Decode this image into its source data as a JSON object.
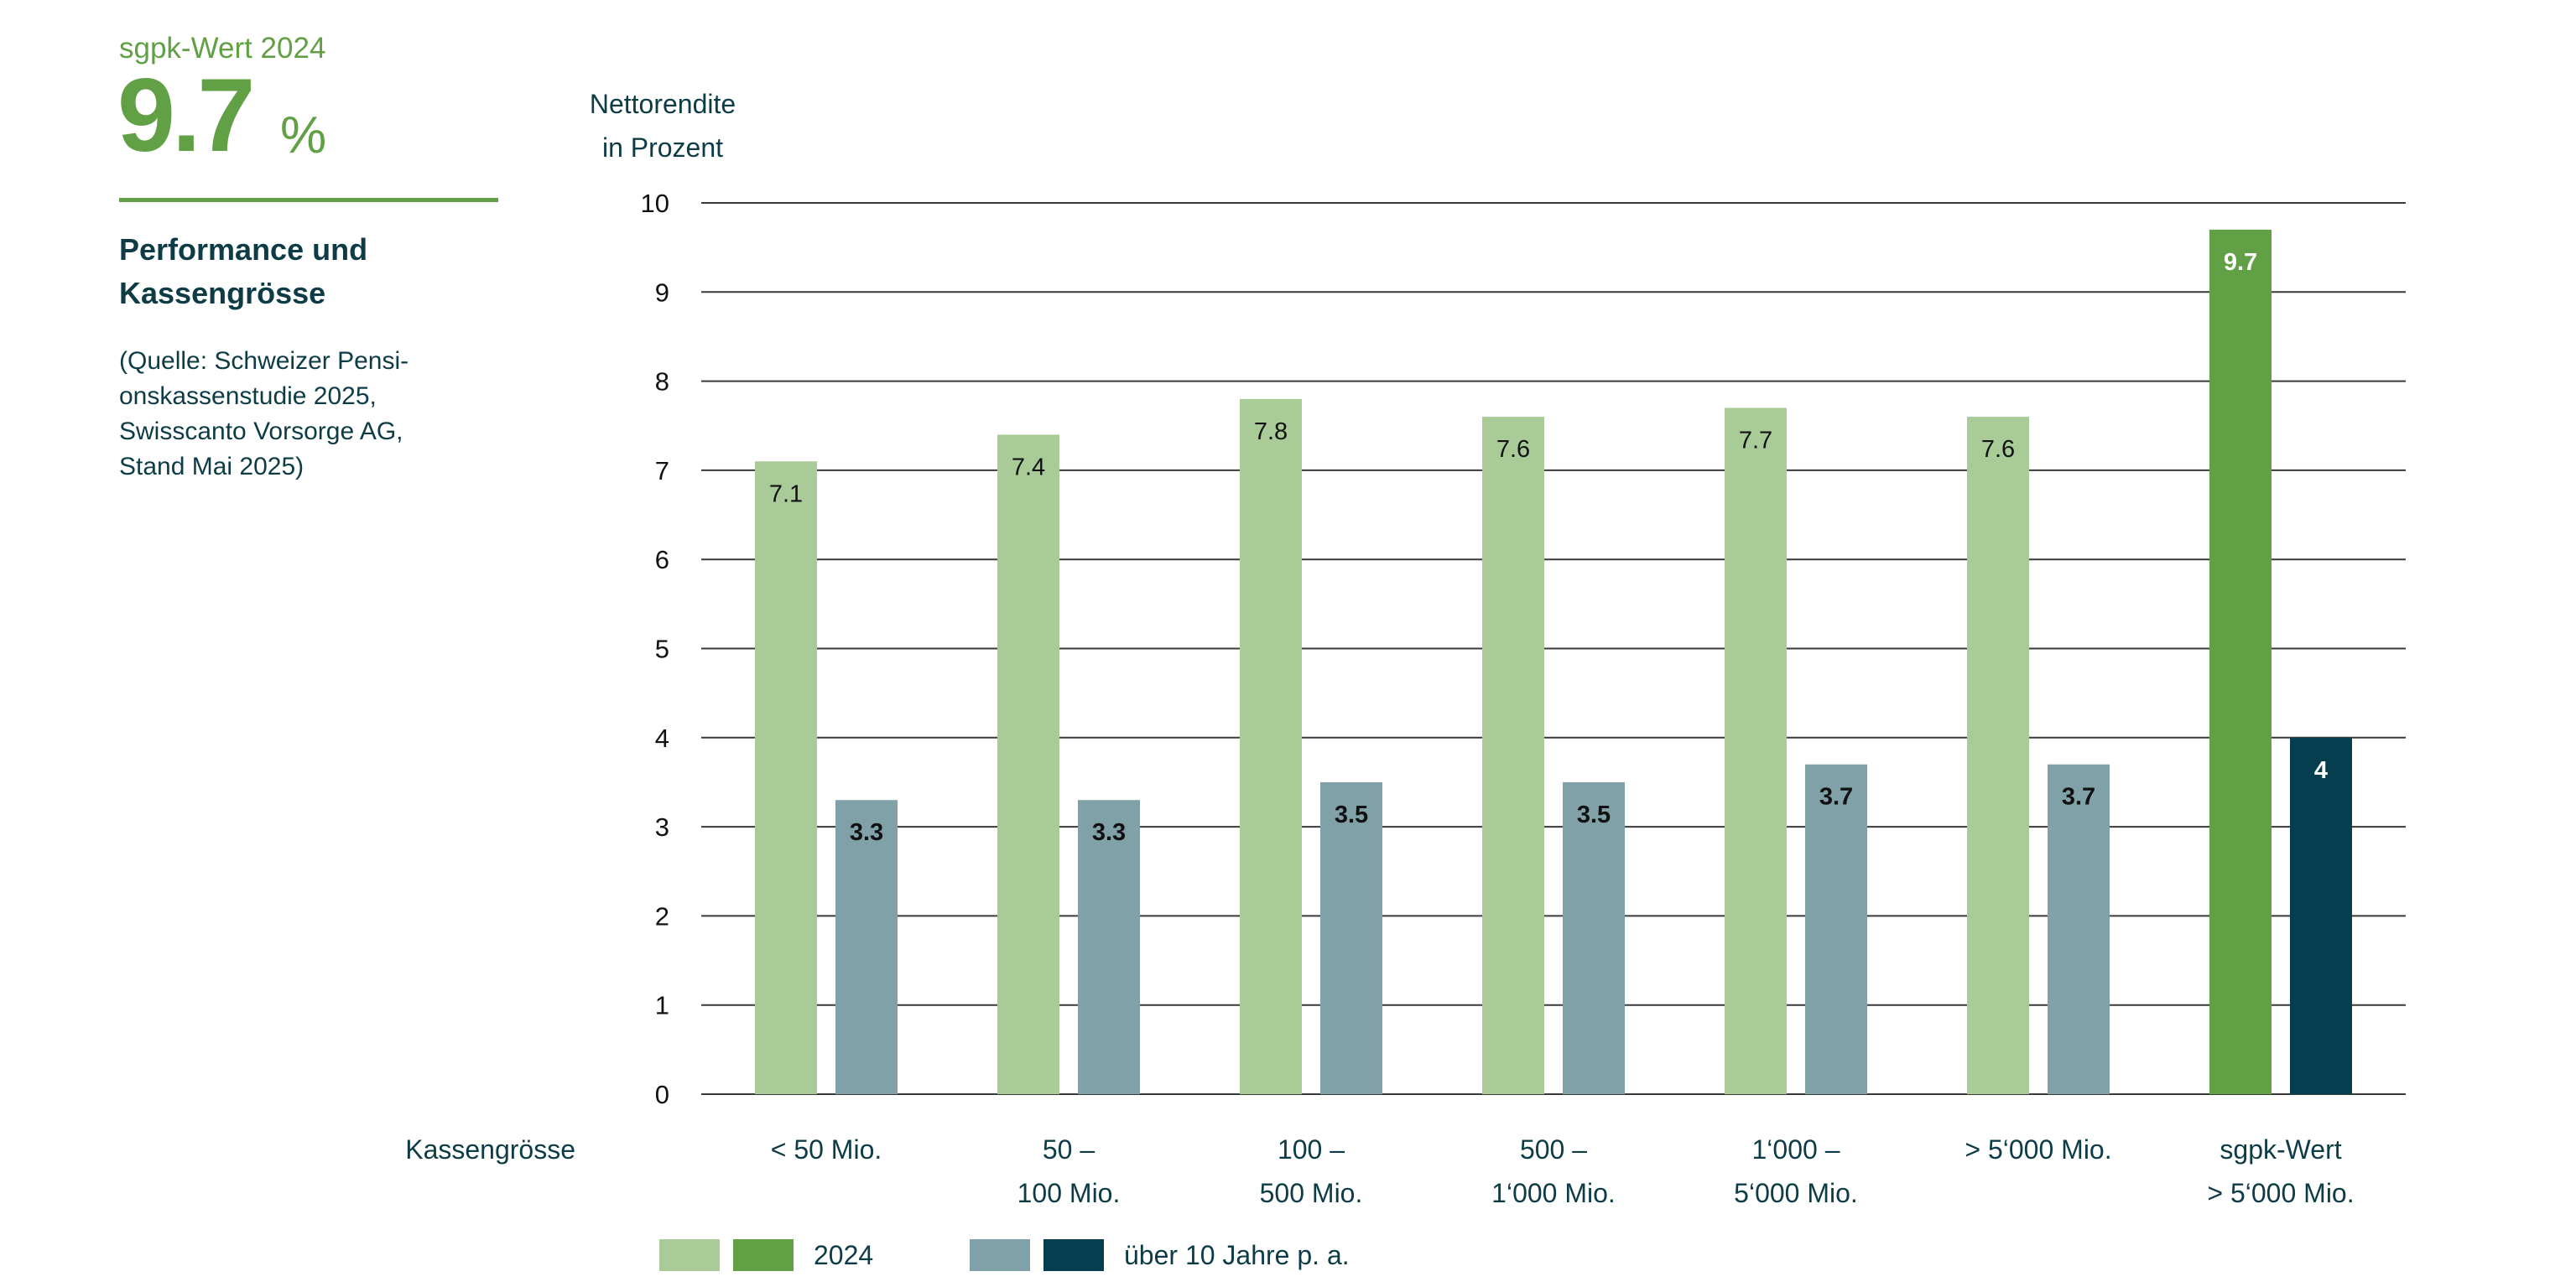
{
  "sidebar": {
    "kpi_label": "sgpk-Wert 2024",
    "kpi_value": "9.7",
    "kpi_unit": "%",
    "title_line1": "Performance und",
    "title_line2": "Kassengrösse",
    "source_lines": [
      "(Quelle: Schweizer Pensi-",
      "onskassenstudie 2025,",
      "Swisscanto Vorsorge AG,",
      "Stand Mai 2025)"
    ]
  },
  "chart_data": {
    "type": "bar",
    "ylabel_lines": [
      "Nettorendite",
      "in Prozent"
    ],
    "xlabel": "Kassengrösse",
    "ylim": [
      0,
      10
    ],
    "yticks": [
      0,
      1,
      2,
      3,
      4,
      5,
      6,
      7,
      8,
      9,
      10
    ],
    "grid": true,
    "categories": [
      [
        "< 50 Mio."
      ],
      [
        "50 –",
        "100 Mio."
      ],
      [
        "100 –",
        "500 Mio."
      ],
      [
        "500 –",
        "1‘000 Mio."
      ],
      [
        "1‘000 –",
        "5‘000 Mio."
      ],
      [
        "> 5‘000 Mio."
      ],
      [
        "sgpk-Wert",
        "> 5‘000 Mio."
      ]
    ],
    "series": [
      {
        "name": "2024",
        "values": [
          7.1,
          7.4,
          7.8,
          7.6,
          7.7,
          7.6,
          9.7
        ],
        "labels": [
          "7.1",
          "7.4",
          "7.8",
          "7.6",
          "7.7",
          "7.6",
          "9.7"
        ],
        "colors": [
          "#a8cb98",
          "#a8cb98",
          "#a8cb98",
          "#a8cb98",
          "#a8cb98",
          "#a8cb98",
          "#62a046"
        ]
      },
      {
        "name": "über 10 Jahre p. a.",
        "values": [
          3.3,
          3.3,
          3.5,
          3.5,
          3.7,
          3.7,
          4.0
        ],
        "labels": [
          "3.3",
          "3.3",
          "3.5",
          "3.5",
          "3.7",
          "3.7",
          "4"
        ],
        "colors": [
          "#7fa1a7",
          "#7fa1a7",
          "#7fa1a7",
          "#7fa1a7",
          "#7fa1a7",
          "#7fa1a7",
          "#053f4f"
        ]
      }
    ],
    "legend": [
      {
        "label": "2024",
        "swatches": [
          "#a8cb98",
          "#62a046"
        ]
      },
      {
        "label": "über 10 Jahre p. a.",
        "swatches": [
          "#7fa1a7",
          "#053f4f"
        ]
      }
    ],
    "legend_position": "bottom-left"
  },
  "colors": {
    "accent_green": "#62a046",
    "dark_teal": "#053f4f",
    "text_teal": "#0d3c46",
    "grid": "#3a3a3a"
  }
}
